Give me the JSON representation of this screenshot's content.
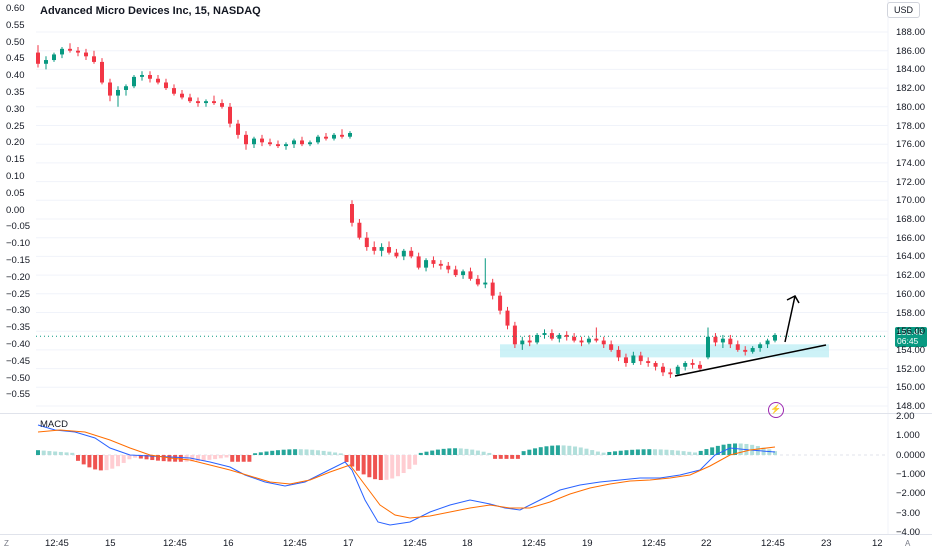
{
  "header": {
    "title": "Advanced Micro Devices Inc, 15, NASDAQ",
    "currency": "USD"
  },
  "left_axis": {
    "labels": [
      "0.60",
      "0.55",
      "0.50",
      "0.45",
      "0.40",
      "0.35",
      "0.30",
      "0.25",
      "0.20",
      "0.15",
      "0.10",
      "0.05",
      "0.00",
      "−0.05",
      "−0.10",
      "−0.15",
      "−0.20",
      "−0.25",
      "−0.30",
      "−0.35",
      "−0.40",
      "−0.45",
      "−0.50",
      "−0.55"
    ]
  },
  "right_axis": {
    "labels": [
      "188.00",
      "186.00",
      "184.00",
      "182.00",
      "180.00",
      "178.00",
      "176.00",
      "174.00",
      "172.00",
      "170.00",
      "168.00",
      "166.00",
      "164.00",
      "162.00",
      "160.00",
      "158.00",
      "156.00",
      "154.00",
      "152.00",
      "150.00",
      "148.00"
    ]
  },
  "price_badge": {
    "price": "155.46",
    "countdown": "06:45"
  },
  "macd": {
    "label": "MACD",
    "axis_labels": [
      "2.00",
      "1.000",
      "0.0000",
      "−1.000",
      "−2.000",
      "−3.00",
      "−4.00"
    ]
  },
  "time_axis": {
    "labels": [
      "12:45",
      "15",
      "12:45",
      "16",
      "12:45",
      "17",
      "12:45",
      "18",
      "12:45",
      "19",
      "12:45",
      "22",
      "12:45",
      "23",
      "12"
    ],
    "corner_left": "Z",
    "corner_right": "A"
  },
  "colors": {
    "up": "#089981",
    "down": "#f23645",
    "macd_line": "#2962ff",
    "signal_line": "#ff6d00",
    "zone": "#b2ebf2",
    "price_line": "#089981"
  },
  "icons": {
    "alert": "lightning-icon"
  },
  "chart_data": {
    "type": "candlestick",
    "ylim": [
      148,
      188
    ],
    "candles": [
      [
        185.8,
        186.6,
        184.2,
        184.6
      ],
      [
        184.6,
        185.4,
        184.0,
        185.0
      ],
      [
        185.0,
        185.8,
        184.8,
        185.6
      ],
      [
        185.6,
        186.4,
        185.2,
        186.2
      ],
      [
        186.2,
        186.8,
        185.8,
        186.0
      ],
      [
        186.0,
        186.4,
        185.4,
        185.8
      ],
      [
        185.8,
        186.2,
        185.0,
        185.4
      ],
      [
        185.4,
        186.0,
        184.6,
        184.8
      ],
      [
        184.8,
        185.2,
        182.4,
        182.6
      ],
      [
        182.6,
        183.0,
        180.6,
        181.2
      ],
      [
        181.2,
        182.2,
        180.0,
        181.8
      ],
      [
        181.8,
        182.4,
        181.2,
        182.2
      ],
      [
        182.2,
        183.4,
        182.0,
        183.2
      ],
      [
        183.2,
        183.8,
        182.8,
        183.4
      ],
      [
        183.4,
        183.8,
        182.6,
        183.0
      ],
      [
        183.0,
        183.4,
        182.4,
        182.6
      ],
      [
        182.6,
        183.0,
        181.8,
        182.0
      ],
      [
        182.0,
        182.4,
        181.2,
        181.4
      ],
      [
        181.4,
        181.8,
        180.8,
        181.0
      ],
      [
        181.0,
        181.4,
        180.4,
        180.6
      ],
      [
        180.6,
        181.0,
        180.0,
        180.4
      ],
      [
        180.4,
        180.8,
        180.0,
        180.6
      ],
      [
        180.6,
        181.2,
        180.2,
        180.4
      ],
      [
        180.4,
        180.8,
        179.8,
        180.0
      ],
      [
        180.0,
        180.4,
        177.8,
        178.2
      ],
      [
        178.2,
        178.6,
        176.6,
        177.0
      ],
      [
        177.0,
        177.4,
        175.4,
        176.0
      ],
      [
        176.0,
        176.8,
        175.6,
        176.6
      ],
      [
        176.6,
        177.0,
        175.8,
        176.2
      ],
      [
        176.2,
        176.6,
        175.8,
        176.0
      ],
      [
        176.0,
        176.4,
        175.6,
        175.8
      ],
      [
        175.8,
        176.2,
        175.4,
        176.0
      ],
      [
        176.0,
        176.6,
        175.6,
        176.4
      ],
      [
        176.4,
        176.8,
        175.8,
        176.0
      ],
      [
        176.0,
        176.4,
        175.8,
        176.2
      ],
      [
        176.2,
        177.0,
        176.0,
        176.8
      ],
      [
        176.8,
        177.2,
        176.4,
        176.6
      ],
      [
        176.6,
        177.2,
        176.4,
        177.0
      ],
      [
        177.0,
        177.6,
        176.6,
        176.8
      ],
      [
        176.8,
        177.4,
        176.6,
        177.2
      ],
      [
        169.6,
        170.0,
        167.2,
        167.6
      ],
      [
        167.6,
        168.0,
        165.8,
        166.0
      ],
      [
        166.0,
        166.6,
        164.6,
        165.0
      ],
      [
        165.0,
        165.6,
        164.2,
        164.6
      ],
      [
        164.6,
        165.4,
        164.0,
        165.0
      ],
      [
        165.0,
        165.6,
        164.2,
        164.4
      ],
      [
        164.4,
        164.8,
        163.8,
        164.0
      ],
      [
        164.0,
        164.8,
        163.6,
        164.6
      ],
      [
        164.6,
        165.0,
        163.8,
        164.0
      ],
      [
        164.0,
        164.4,
        162.6,
        162.8
      ],
      [
        162.8,
        163.8,
        162.4,
        163.6
      ],
      [
        163.6,
        164.0,
        162.8,
        163.2
      ],
      [
        163.2,
        163.6,
        162.6,
        163.0
      ],
      [
        163.0,
        163.4,
        162.2,
        162.6
      ],
      [
        162.6,
        163.0,
        161.8,
        162.0
      ],
      [
        162.0,
        162.6,
        161.6,
        162.4
      ],
      [
        162.4,
        162.8,
        161.4,
        161.6
      ],
      [
        161.6,
        162.0,
        160.8,
        161.0
      ],
      [
        161.0,
        163.8,
        160.6,
        161.2
      ],
      [
        161.2,
        161.6,
        159.4,
        159.8
      ],
      [
        159.8,
        160.2,
        157.8,
        158.2
      ],
      [
        158.2,
        158.6,
        156.2,
        156.6
      ],
      [
        156.6,
        157.0,
        154.2,
        154.6
      ],
      [
        154.6,
        155.4,
        154.0,
        155.0
      ],
      [
        155.0,
        155.6,
        154.4,
        154.8
      ],
      [
        154.8,
        155.8,
        154.6,
        155.6
      ],
      [
        155.6,
        156.2,
        155.2,
        155.8
      ],
      [
        155.8,
        156.2,
        155.0,
        155.2
      ],
      [
        155.2,
        155.8,
        154.8,
        155.6
      ],
      [
        155.6,
        156.0,
        155.0,
        155.4
      ],
      [
        155.4,
        155.8,
        154.8,
        155.0
      ],
      [
        155.0,
        155.4,
        154.4,
        154.8
      ],
      [
        154.8,
        155.4,
        154.6,
        155.2
      ],
      [
        155.2,
        156.4,
        154.8,
        155.0
      ],
      [
        155.0,
        155.4,
        154.2,
        154.6
      ],
      [
        154.6,
        155.0,
        153.8,
        154.0
      ],
      [
        154.0,
        154.4,
        152.8,
        153.2
      ],
      [
        153.2,
        153.6,
        152.2,
        152.6
      ],
      [
        152.6,
        153.8,
        152.4,
        153.4
      ],
      [
        153.4,
        153.8,
        152.4,
        152.8
      ],
      [
        152.8,
        153.2,
        152.2,
        152.6
      ],
      [
        152.6,
        152.8,
        151.8,
        152.2
      ],
      [
        152.2,
        152.6,
        151.2,
        151.6
      ],
      [
        151.6,
        152.0,
        151.0,
        151.4
      ],
      [
        151.4,
        152.4,
        151.2,
        152.2
      ],
      [
        152.2,
        152.8,
        151.8,
        152.6
      ],
      [
        152.6,
        153.0,
        152.0,
        152.4
      ],
      [
        152.4,
        152.8,
        151.8,
        152.0
      ],
      [
        153.2,
        156.4,
        153.0,
        155.4
      ],
      [
        155.4,
        155.8,
        154.4,
        154.8
      ],
      [
        154.8,
        155.6,
        154.2,
        155.2
      ],
      [
        155.2,
        155.6,
        154.2,
        154.6
      ],
      [
        154.6,
        155.0,
        153.8,
        154.0
      ],
      [
        154.0,
        154.4,
        153.4,
        153.8
      ],
      [
        153.8,
        154.4,
        153.6,
        154.2
      ],
      [
        154.2,
        154.8,
        153.8,
        154.6
      ],
      [
        154.6,
        155.2,
        154.2,
        155.0
      ],
      [
        155.0,
        155.8,
        154.8,
        155.6
      ]
    ],
    "zone": {
      "x_from": "18 09:30",
      "x_to": "22 16:00",
      "y_from": 153.2,
      "y_to": 154.6
    },
    "current_price": 155.46
  }
}
